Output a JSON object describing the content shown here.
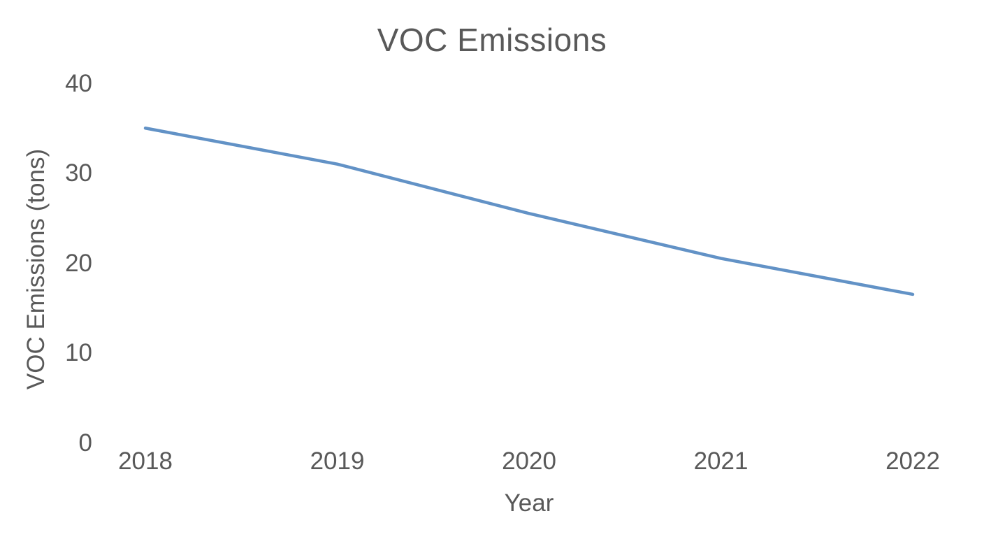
{
  "chart_data": {
    "type": "line",
    "title": "VOC Emissions",
    "xlabel": "Year",
    "ylabel": "VOC Emissions (tons)",
    "categories": [
      "2018",
      "2019",
      "2020",
      "2021",
      "2022"
    ],
    "series": [
      {
        "name": "VOC Emissions",
        "values": [
          35,
          31,
          25.5,
          20.5,
          16.5
        ]
      }
    ],
    "ylim": [
      0,
      40
    ],
    "yticks": [
      0,
      10,
      20,
      30,
      40
    ],
    "grid": false,
    "axis_lines": false,
    "legend": "none",
    "line_color": "#6292C6",
    "text_color": "#595959",
    "background": "#ffffff"
  }
}
